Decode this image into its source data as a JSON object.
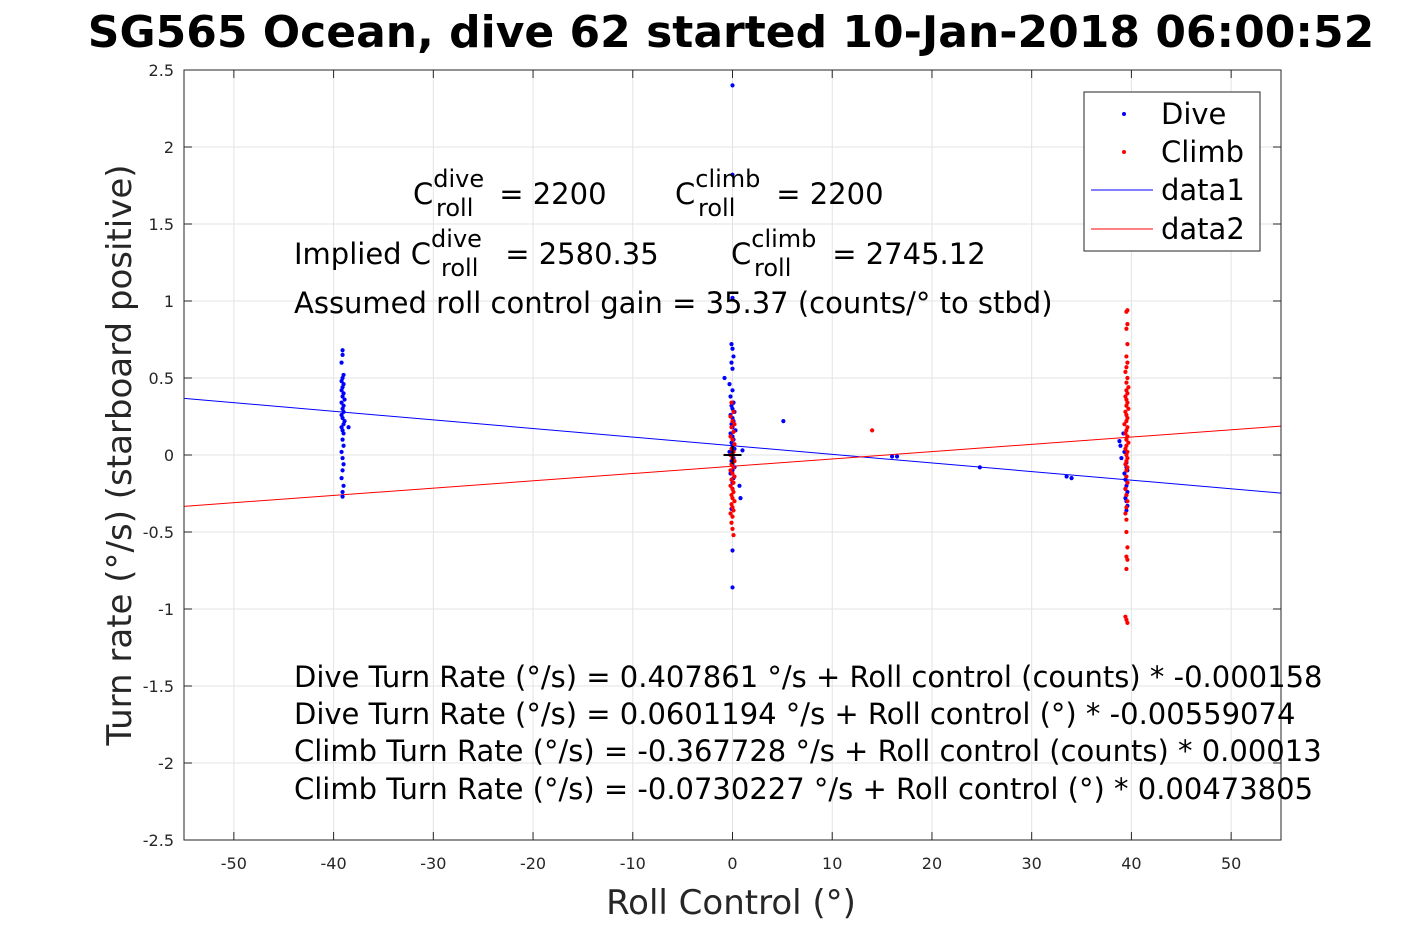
{
  "chart_data": {
    "type": "scatter",
    "title": "SG565 Ocean, dive 62 started 10-Jan-2018 06:00:52",
    "xlabel": "Roll Control (°)",
    "ylabel": "Turn rate (°/s) (starboard positive)",
    "xlim": [
      -55,
      55
    ],
    "ylim": [
      -2.5,
      2.5
    ],
    "xticks": [
      -50,
      -40,
      -30,
      -20,
      -10,
      0,
      10,
      20,
      30,
      40,
      50
    ],
    "yticks": [
      -2.5,
      -2,
      -1.5,
      -1,
      -0.5,
      0,
      0.5,
      1,
      1.5,
      2,
      2.5
    ],
    "xtick_labels": [
      "-50",
      "-40",
      "-30",
      "-20",
      "-10",
      "0",
      "10",
      "20",
      "30",
      "40",
      "50"
    ],
    "ytick_labels": [
      "-2.5",
      "-2",
      "-1.5",
      "-1",
      "-0.5",
      "0",
      "0.5",
      "1",
      "1.5",
      "2",
      "2.5"
    ],
    "grid": true,
    "legend_position": "top-right",
    "series": [
      {
        "name": "Dive",
        "kind": "points",
        "color": "#0000ff",
        "points": [
          [
            -39.1,
            0.68
          ],
          [
            -39.1,
            0.65
          ],
          [
            -39.2,
            0.6
          ],
          [
            -39.0,
            0.52
          ],
          [
            -39.1,
            0.5
          ],
          [
            -39.2,
            0.48
          ],
          [
            -39.0,
            0.46
          ],
          [
            -39.1,
            0.44
          ],
          [
            -39.2,
            0.42
          ],
          [
            -39.0,
            0.4
          ],
          [
            -39.1,
            0.38
          ],
          [
            -38.9,
            0.36
          ],
          [
            -39.2,
            0.34
          ],
          [
            -39.0,
            0.32
          ],
          [
            -39.1,
            0.3
          ],
          [
            -39.0,
            0.28
          ],
          [
            -39.2,
            0.26
          ],
          [
            -39.1,
            0.24
          ],
          [
            -38.9,
            0.22
          ],
          [
            -39.0,
            0.2
          ],
          [
            -39.2,
            0.18
          ],
          [
            -38.5,
            0.18
          ],
          [
            -39.1,
            0.16
          ],
          [
            -39.0,
            0.14
          ],
          [
            -39.1,
            0.1
          ],
          [
            -39.0,
            0.06
          ],
          [
            -39.2,
            0.02
          ],
          [
            -39.1,
            -0.02
          ],
          [
            -39.0,
            -0.06
          ],
          [
            -39.1,
            -0.1
          ],
          [
            -39.2,
            -0.15
          ],
          [
            -39.0,
            -0.2
          ],
          [
            -39.1,
            -0.24
          ],
          [
            -39.1,
            -0.27
          ],
          [
            0.0,
            2.4
          ],
          [
            0.0,
            1.82
          ],
          [
            0.0,
            1.02
          ],
          [
            -0.1,
            0.72
          ],
          [
            0.0,
            0.69
          ],
          [
            0.1,
            0.64
          ],
          [
            -0.1,
            0.6
          ],
          [
            0.0,
            0.56
          ],
          [
            -0.8,
            0.5
          ],
          [
            -0.3,
            0.46
          ],
          [
            0.0,
            0.42
          ],
          [
            -0.2,
            0.38
          ],
          [
            0.1,
            0.34
          ],
          [
            -0.1,
            0.32
          ],
          [
            0.0,
            0.3
          ],
          [
            0.2,
            0.28
          ],
          [
            -0.2,
            0.26
          ],
          [
            0.0,
            0.24
          ],
          [
            0.1,
            0.22
          ],
          [
            -0.1,
            0.2
          ],
          [
            0.0,
            0.18
          ],
          [
            0.3,
            0.16
          ],
          [
            -0.2,
            0.14
          ],
          [
            0.0,
            0.12
          ],
          [
            0.1,
            0.1
          ],
          [
            -0.1,
            0.08
          ],
          [
            0.0,
            0.06
          ],
          [
            0.2,
            0.04
          ],
          [
            1.0,
            0.03
          ],
          [
            -0.3,
            0.02
          ],
          [
            0.0,
            0.0
          ],
          [
            0.1,
            -0.02
          ],
          [
            -0.1,
            -0.04
          ],
          [
            0.0,
            -0.06
          ],
          [
            0.2,
            -0.08
          ],
          [
            0.0,
            -0.1
          ],
          [
            -0.2,
            -0.12
          ],
          [
            0.1,
            -0.15
          ],
          [
            0.0,
            -0.18
          ],
          [
            0.7,
            -0.2
          ],
          [
            0.0,
            -0.22
          ],
          [
            0.8,
            -0.28
          ],
          [
            -0.1,
            -0.35
          ],
          [
            0.0,
            -0.62
          ],
          [
            0.0,
            -0.86
          ],
          [
            5.1,
            0.22
          ],
          [
            16.0,
            -0.01
          ],
          [
            16.5,
            -0.01
          ],
          [
            24.8,
            -0.08
          ],
          [
            33.5,
            -0.14
          ],
          [
            34.0,
            -0.15
          ],
          [
            38.8,
            0.09
          ],
          [
            38.9,
            0.06
          ],
          [
            39.0,
            -0.02
          ],
          [
            39.2,
            0.14
          ],
          [
            39.3,
            0.02
          ],
          [
            39.5,
            -0.05
          ],
          [
            39.5,
            -0.08
          ],
          [
            39.6,
            -0.1
          ],
          [
            39.3,
            -0.12
          ],
          [
            39.5,
            -0.14
          ],
          [
            39.4,
            -0.16
          ],
          [
            39.6,
            -0.18
          ],
          [
            39.5,
            -0.2
          ],
          [
            39.4,
            -0.22
          ],
          [
            39.6,
            -0.24
          ],
          [
            39.5,
            -0.26
          ],
          [
            39.4,
            -0.28
          ],
          [
            39.5,
            -0.3
          ],
          [
            39.6,
            -0.33
          ],
          [
            39.5,
            -0.36
          ]
        ]
      },
      {
        "name": "Climb",
        "kind": "points",
        "color": "#ff0000",
        "points": [
          [
            39.6,
            0.94
          ],
          [
            39.5,
            0.93
          ],
          [
            39.6,
            0.85
          ],
          [
            39.5,
            0.82
          ],
          [
            39.6,
            0.72
          ],
          [
            39.5,
            0.64
          ],
          [
            39.6,
            0.6
          ],
          [
            39.5,
            0.57
          ],
          [
            39.4,
            0.54
          ],
          [
            39.6,
            0.5
          ],
          [
            39.5,
            0.47
          ],
          [
            39.7,
            0.44
          ],
          [
            39.5,
            0.42
          ],
          [
            39.6,
            0.4
          ],
          [
            39.4,
            0.38
          ],
          [
            39.5,
            0.36
          ],
          [
            39.6,
            0.34
          ],
          [
            39.5,
            0.32
          ],
          [
            39.7,
            0.3
          ],
          [
            39.4,
            0.28
          ],
          [
            39.5,
            0.26
          ],
          [
            39.6,
            0.24
          ],
          [
            39.5,
            0.22
          ],
          [
            39.3,
            0.2
          ],
          [
            39.6,
            0.18
          ],
          [
            39.5,
            0.16
          ],
          [
            39.4,
            0.14
          ],
          [
            39.6,
            0.12
          ],
          [
            39.5,
            0.1
          ],
          [
            39.7,
            0.08
          ],
          [
            39.5,
            0.06
          ],
          [
            39.4,
            0.04
          ],
          [
            39.6,
            0.02
          ],
          [
            39.5,
            0.0
          ],
          [
            39.6,
            -0.02
          ],
          [
            39.5,
            -0.04
          ],
          [
            39.4,
            -0.06
          ],
          [
            39.6,
            -0.08
          ],
          [
            39.5,
            -0.1
          ],
          [
            39.5,
            -0.14
          ],
          [
            39.6,
            -0.18
          ],
          [
            39.4,
            -0.22
          ],
          [
            39.5,
            -0.26
          ],
          [
            39.6,
            -0.3
          ],
          [
            39.5,
            -0.34
          ],
          [
            39.4,
            -0.38
          ],
          [
            39.5,
            -0.42
          ],
          [
            39.5,
            -0.5
          ],
          [
            39.6,
            -0.6
          ],
          [
            39.5,
            -0.66
          ],
          [
            39.6,
            -0.68
          ],
          [
            39.5,
            -0.74
          ],
          [
            39.4,
            -1.05
          ],
          [
            39.5,
            -1.07
          ],
          [
            39.6,
            -1.09
          ],
          [
            -0.1,
            0.34
          ],
          [
            0.1,
            0.28
          ],
          [
            -0.2,
            0.25
          ],
          [
            0.0,
            0.22
          ],
          [
            0.2,
            0.2
          ],
          [
            -0.1,
            0.18
          ],
          [
            0.1,
            0.15
          ],
          [
            -0.2,
            0.12
          ],
          [
            0.0,
            0.1
          ],
          [
            0.2,
            0.07
          ],
          [
            -0.1,
            0.04
          ],
          [
            0.1,
            0.02
          ],
          [
            -0.2,
            0.0
          ],
          [
            0.0,
            -0.02
          ],
          [
            0.2,
            -0.04
          ],
          [
            -0.1,
            -0.06
          ],
          [
            0.1,
            -0.08
          ],
          [
            -0.2,
            -0.1
          ],
          [
            0.0,
            -0.12
          ],
          [
            0.2,
            -0.14
          ],
          [
            -0.1,
            -0.16
          ],
          [
            0.1,
            -0.18
          ],
          [
            -0.2,
            -0.2
          ],
          [
            0.0,
            -0.22
          ],
          [
            0.1,
            -0.24
          ],
          [
            -0.1,
            -0.26
          ],
          [
            0.0,
            -0.28
          ],
          [
            0.2,
            -0.3
          ],
          [
            -0.1,
            -0.32
          ],
          [
            0.0,
            -0.34
          ],
          [
            0.1,
            -0.36
          ],
          [
            -0.2,
            -0.38
          ],
          [
            0.0,
            -0.4
          ],
          [
            -0.1,
            -0.44
          ],
          [
            0.0,
            -0.48
          ],
          [
            0.1,
            -0.52
          ],
          [
            14.0,
            0.16
          ]
        ]
      },
      {
        "name": "data1",
        "kind": "line",
        "color": "#0000ff",
        "x": [
          -55,
          55
        ],
        "values": [
          0.3678,
          -0.2474
        ]
      },
      {
        "name": "data2",
        "kind": "line",
        "color": "#ff0000",
        "x": [
          -55,
          55
        ],
        "values": [
          -0.3336,
          0.1876
        ]
      }
    ],
    "marker": {
      "x": 0,
      "y": 0,
      "color": "#000000",
      "symbol": "+"
    },
    "annotations": {
      "c_roll_dive": {
        "pre": "C",
        "sup": "dive",
        "sub": "roll",
        "post": " = 2200"
      },
      "c_roll_climb": {
        "pre": "C",
        "sup": "climb",
        "sub": "roll",
        "post": " = 2200"
      },
      "implied_dive": {
        "pre": "Implied C",
        "sup": "dive",
        "sub": "roll",
        "post": " = 2580.35"
      },
      "implied_climb": {
        "pre": "C",
        "sup": "climb",
        "sub": "roll",
        "post": " = 2745.12"
      },
      "gain": "Assumed roll control gain = 35.37 (counts/° to stbd)",
      "eq1": "Dive Turn Rate (°/s) = 0.407861 °/s + Roll control (counts) * -0.000158",
      "eq2": "Dive Turn Rate (°/s) = 0.0601194 °/s + Roll control (°) * -0.00559074",
      "eq3": "Climb Turn Rate (°/s) = -0.367728 °/s + Roll control (counts) * 0.00013",
      "eq4": "Climb Turn Rate (°/s) = -0.0730227 °/s + Roll control (°) * 0.00473805"
    }
  }
}
